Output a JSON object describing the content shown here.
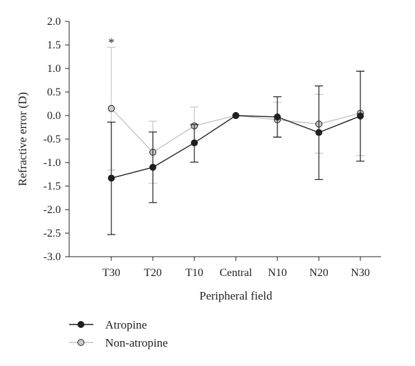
{
  "chart_data": {
    "type": "line",
    "xlabel": "Peripheral field",
    "ylabel": "Refractive error (D)",
    "categories": [
      "T30",
      "T20",
      "T10",
      "Central",
      "N10",
      "N20",
      "N30"
    ],
    "ylim": [
      -3.0,
      2.0
    ],
    "yticks": [
      "2.0",
      "1.5",
      "1.0",
      "0.5",
      "0.0",
      "-0.5",
      "-1.0",
      "-1.5",
      "-2.0",
      "-2.5",
      "-3.0"
    ],
    "ytick_values": [
      2.0,
      1.5,
      1.0,
      0.5,
      0.0,
      -0.5,
      -1.0,
      -1.5,
      -2.0,
      -2.5,
      -3.0
    ],
    "grid": false,
    "legend_position": "bottom-left",
    "annotations": [
      {
        "text": "*",
        "category": "T30"
      }
    ],
    "series": [
      {
        "name": "Atropine",
        "color": "#231f20",
        "marker_fill": "#231f20",
        "values": [
          -1.33,
          -1.1,
          -0.58,
          0.0,
          -0.03,
          -0.36,
          -0.01
        ],
        "err_low": [
          -2.53,
          -1.85,
          -0.99,
          0.0,
          -0.46,
          -1.36,
          -0.97
        ],
        "err_high": [
          -0.14,
          -0.35,
          -0.19,
          0.0,
          0.4,
          0.63,
          0.94
        ]
      },
      {
        "name": "Non-atropine",
        "color": "#c4c4c4",
        "marker_fill": "#c8c8c8",
        "values": [
          0.15,
          -0.78,
          -0.22,
          0.0,
          -0.09,
          -0.18,
          0.05
        ],
        "err_low": [
          -1.16,
          -1.44,
          -0.22,
          0.0,
          -0.45,
          -0.8,
          -0.85
        ],
        "err_high": [
          1.45,
          -0.12,
          0.18,
          0.0,
          0.28,
          0.45,
          0.95
        ]
      }
    ]
  }
}
